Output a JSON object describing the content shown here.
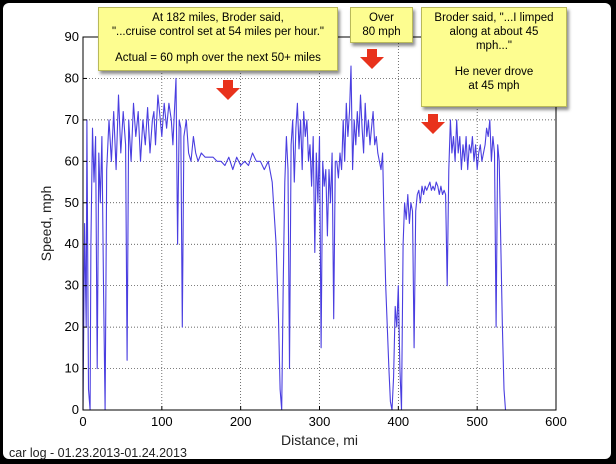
{
  "chart_data": {
    "type": "line",
    "xlabel": "Distance, mi",
    "ylabel": "Speed, mph",
    "xlim": [
      0,
      600
    ],
    "ylim": [
      0,
      90
    ],
    "xticks": [
      "0",
      "100",
      "200",
      "300",
      "400",
      "500",
      "600"
    ],
    "yticks": [
      "0",
      "10",
      "20",
      "30",
      "40",
      "50",
      "60",
      "70",
      "80",
      "90"
    ],
    "grid": true,
    "series_color": "#4a3ee0",
    "points": [
      [
        0,
        0
      ],
      [
        2,
        45
      ],
      [
        4,
        20
      ],
      [
        5,
        70
      ],
      [
        7,
        5
      ],
      [
        9,
        0
      ],
      [
        10,
        40
      ],
      [
        12,
        68
      ],
      [
        14,
        55
      ],
      [
        16,
        66
      ],
      [
        18,
        10
      ],
      [
        20,
        62
      ],
      [
        22,
        50
      ],
      [
        24,
        66
      ],
      [
        26,
        30
      ],
      [
        28,
        0
      ],
      [
        30,
        58
      ],
      [
        33,
        70
      ],
      [
        36,
        60
      ],
      [
        39,
        72
      ],
      [
        42,
        58
      ],
      [
        45,
        76
      ],
      [
        48,
        62
      ],
      [
        51,
        72
      ],
      [
        54,
        64
      ],
      [
        56,
        12
      ],
      [
        58,
        70
      ],
      [
        61,
        60
      ],
      [
        64,
        74
      ],
      [
        67,
        66
      ],
      [
        70,
        72
      ],
      [
        73,
        60
      ],
      [
        76,
        70
      ],
      [
        79,
        64
      ],
      [
        82,
        73
      ],
      [
        85,
        62
      ],
      [
        88,
        70
      ],
      [
        90,
        72
      ],
      [
        92,
        64
      ],
      [
        95,
        76
      ],
      [
        98,
        70
      ],
      [
        100,
        66
      ],
      [
        103,
        74
      ],
      [
        106,
        68
      ],
      [
        109,
        74
      ],
      [
        112,
        70
      ],
      [
        114,
        64
      ],
      [
        116,
        72
      ],
      [
        118,
        80
      ],
      [
        120,
        40
      ],
      [
        122,
        70
      ],
      [
        124,
        68
      ],
      [
        126,
        20
      ],
      [
        128,
        66
      ],
      [
        131,
        70
      ],
      [
        134,
        62
      ],
      [
        137,
        60
      ],
      [
        140,
        66
      ],
      [
        143,
        62
      ],
      [
        146,
        60
      ],
      [
        150,
        62
      ],
      [
        155,
        61
      ],
      [
        160,
        61
      ],
      [
        165,
        61
      ],
      [
        170,
        60
      ],
      [
        175,
        60
      ],
      [
        180,
        59
      ],
      [
        185,
        61
      ],
      [
        190,
        58
      ],
      [
        195,
        61
      ],
      [
        200,
        59
      ],
      [
        205,
        60
      ],
      [
        210,
        59
      ],
      [
        215,
        62
      ],
      [
        220,
        60
      ],
      [
        225,
        60
      ],
      [
        230,
        58
      ],
      [
        235,
        60
      ],
      [
        240,
        55
      ],
      [
        245,
        40
      ],
      [
        248,
        22
      ],
      [
        250,
        5
      ],
      [
        252,
        0
      ],
      [
        254,
        30
      ],
      [
        256,
        55
      ],
      [
        258,
        66
      ],
      [
        260,
        58
      ],
      [
        262,
        10
      ],
      [
        264,
        64
      ],
      [
        266,
        70
      ],
      [
        268,
        55
      ],
      [
        270,
        68
      ],
      [
        272,
        74
      ],
      [
        274,
        63
      ],
      [
        276,
        70
      ],
      [
        278,
        58
      ],
      [
        280,
        72
      ],
      [
        282,
        66
      ],
      [
        284,
        70
      ],
      [
        286,
        60
      ],
      [
        288,
        64
      ],
      [
        290,
        54
      ],
      [
        292,
        66
      ],
      [
        294,
        38
      ],
      [
        296,
        62
      ],
      [
        298,
        50
      ],
      [
        300,
        66
      ],
      [
        302,
        15
      ],
      [
        304,
        60
      ],
      [
        306,
        54
      ],
      [
        308,
        58
      ],
      [
        310,
        42
      ],
      [
        312,
        58
      ],
      [
        314,
        50
      ],
      [
        316,
        62
      ],
      [
        318,
        22
      ],
      [
        320,
        60
      ],
      [
        322,
        60
      ],
      [
        324,
        56
      ],
      [
        326,
        62
      ],
      [
        328,
        58
      ],
      [
        330,
        70
      ],
      [
        332,
        60
      ],
      [
        334,
        74
      ],
      [
        336,
        66
      ],
      [
        338,
        72
      ],
      [
        340,
        83
      ],
      [
        342,
        58
      ],
      [
        344,
        70
      ],
      [
        346,
        64
      ],
      [
        348,
        72
      ],
      [
        350,
        66
      ],
      [
        352,
        76
      ],
      [
        354,
        68
      ],
      [
        356,
        62
      ],
      [
        358,
        74
      ],
      [
        360,
        66
      ],
      [
        362,
        70
      ],
      [
        364,
        64
      ],
      [
        366,
        68
      ],
      [
        368,
        72
      ],
      [
        370,
        64
      ],
      [
        372,
        66
      ],
      [
        374,
        62
      ],
      [
        376,
        60
      ],
      [
        378,
        58
      ],
      [
        380,
        62
      ],
      [
        382,
        45
      ],
      [
        384,
        30
      ],
      [
        386,
        20
      ],
      [
        388,
        10
      ],
      [
        390,
        2
      ],
      [
        392,
        0
      ],
      [
        394,
        8
      ],
      [
        396,
        25
      ],
      [
        398,
        20
      ],
      [
        400,
        30
      ],
      [
        402,
        10
      ],
      [
        404,
        0
      ],
      [
        406,
        40
      ],
      [
        408,
        50
      ],
      [
        410,
        46
      ],
      [
        412,
        52
      ],
      [
        414,
        45
      ],
      [
        416,
        50
      ],
      [
        418,
        48
      ],
      [
        420,
        15
      ],
      [
        422,
        48
      ],
      [
        424,
        52
      ],
      [
        426,
        53
      ],
      [
        428,
        50
      ],
      [
        430,
        54
      ],
      [
        432,
        52
      ],
      [
        434,
        54
      ],
      [
        436,
        53
      ],
      [
        438,
        54
      ],
      [
        440,
        55
      ],
      [
        442,
        53
      ],
      [
        444,
        54
      ],
      [
        446,
        53
      ],
      [
        448,
        55
      ],
      [
        450,
        54
      ],
      [
        452,
        52
      ],
      [
        454,
        54
      ],
      [
        456,
        52
      ],
      [
        458,
        53
      ],
      [
        460,
        52
      ],
      [
        462,
        30
      ],
      [
        464,
        58
      ],
      [
        466,
        70
      ],
      [
        468,
        62
      ],
      [
        470,
        66
      ],
      [
        472,
        60
      ],
      [
        474,
        70
      ],
      [
        476,
        62
      ],
      [
        478,
        66
      ],
      [
        480,
        58
      ],
      [
        482,
        64
      ],
      [
        484,
        60
      ],
      [
        486,
        66
      ],
      [
        488,
        58
      ],
      [
        490,
        64
      ],
      [
        492,
        62
      ],
      [
        494,
        66
      ],
      [
        496,
        60
      ],
      [
        498,
        64
      ],
      [
        500,
        58
      ],
      [
        502,
        62
      ],
      [
        504,
        64
      ],
      [
        506,
        60
      ],
      [
        508,
        62
      ],
      [
        510,
        64
      ],
      [
        512,
        68
      ],
      [
        514,
        66
      ],
      [
        516,
        70
      ],
      [
        518,
        60
      ],
      [
        520,
        66
      ],
      [
        522,
        62
      ],
      [
        524,
        20
      ],
      [
        526,
        64
      ],
      [
        528,
        60
      ],
      [
        530,
        40
      ],
      [
        532,
        20
      ],
      [
        534,
        5
      ],
      [
        536,
        0
      ]
    ]
  },
  "annotations": {
    "box1": {
      "lines": [
        "At 182 miles, Broder said,",
        "\"...cruise control set at 54 miles per hour.\"",
        "",
        "Actual = 60 mph over the next 50+ miles"
      ]
    },
    "box2": {
      "lines": [
        "Over",
        "80 mph"
      ]
    },
    "box3": {
      "lines": [
        "Broder said, \"...I limped",
        "along at about 45",
        "mph...\"",
        "",
        "He never drove",
        "at 45 mph"
      ]
    },
    "arrow_color": "#e8321c"
  },
  "footer": {
    "caption": "car log - 01.23.2013-01.24.2013"
  }
}
